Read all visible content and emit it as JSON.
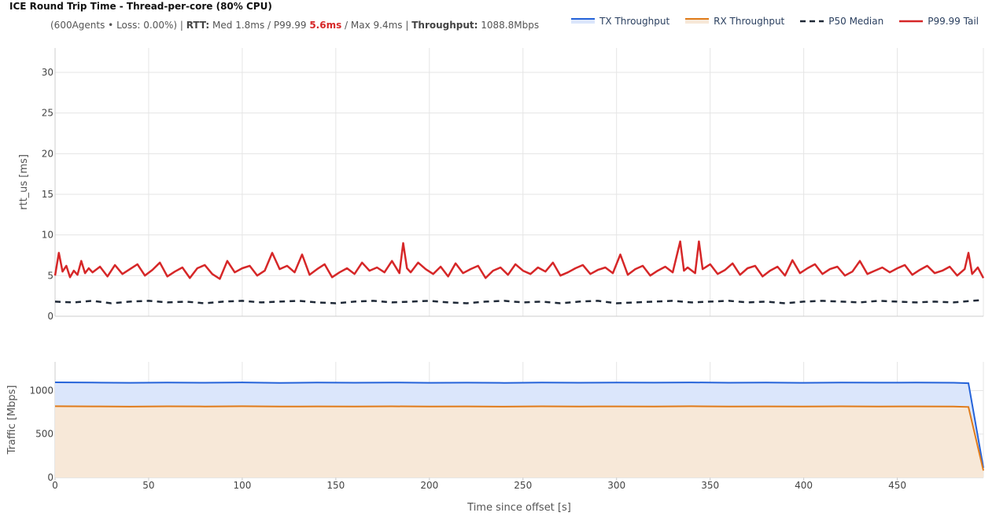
{
  "title": "ICE Round Trip Time - Thread-per-core (80% CPU)",
  "subtitle": {
    "prefix": "(600Agents • Loss: 0.00%) | ",
    "rtt_label": "RTT:",
    "rtt_med": " Med 1.8ms / P99.99 ",
    "rtt_p9999": "5.6ms",
    "rtt_max": " / Max 9.4ms | ",
    "throughput_label": "Throughput:",
    "throughput_value": " 1088.8Mbps"
  },
  "colors": {
    "tx": "#2563d9",
    "tx_fill": "#dbe6fb",
    "rx": "#e07b1a",
    "rx_fill": "#f7e8d8",
    "median": "#1f2937",
    "tail": "#d62728"
  },
  "chart_data": [
    {
      "type": "line",
      "ylabel": "rtt_us [ms]",
      "ylim": [
        0,
        33
      ],
      "yticks": [
        0,
        5,
        10,
        15,
        20,
        25,
        30
      ],
      "xlim": [
        0,
        496
      ],
      "grid": true,
      "series": [
        {
          "name": "P50 Median",
          "style": "dashed",
          "x": [
            0,
            10,
            20,
            30,
            40,
            50,
            60,
            70,
            80,
            90,
            100,
            110,
            120,
            130,
            140,
            150,
            160,
            170,
            180,
            190,
            200,
            210,
            220,
            230,
            240,
            250,
            260,
            270,
            280,
            290,
            300,
            310,
            320,
            330,
            340,
            350,
            360,
            370,
            380,
            390,
            400,
            410,
            420,
            430,
            440,
            450,
            460,
            470,
            480,
            490,
            496
          ],
          "y": [
            1.8,
            1.7,
            1.9,
            1.6,
            1.8,
            1.9,
            1.7,
            1.8,
            1.6,
            1.8,
            1.9,
            1.7,
            1.8,
            1.9,
            1.7,
            1.6,
            1.8,
            1.9,
            1.7,
            1.8,
            1.9,
            1.7,
            1.6,
            1.8,
            1.9,
            1.7,
            1.8,
            1.6,
            1.8,
            1.9,
            1.6,
            1.7,
            1.8,
            1.9,
            1.7,
            1.8,
            1.9,
            1.7,
            1.8,
            1.6,
            1.8,
            1.9,
            1.8,
            1.7,
            1.9,
            1.8,
            1.7,
            1.8,
            1.7,
            1.9,
            2.0
          ]
        },
        {
          "name": "P99.99 Tail",
          "style": "solid",
          "x": [
            0,
            2,
            4,
            6,
            8,
            10,
            12,
            14,
            16,
            18,
            20,
            24,
            28,
            32,
            36,
            40,
            44,
            48,
            52,
            56,
            60,
            64,
            68,
            72,
            76,
            80,
            84,
            88,
            92,
            96,
            100,
            104,
            108,
            112,
            116,
            120,
            124,
            128,
            132,
            136,
            140,
            144,
            148,
            152,
            156,
            160,
            164,
            168,
            172,
            176,
            180,
            184,
            186,
            188,
            190,
            194,
            198,
            202,
            206,
            210,
            214,
            218,
            222,
            226,
            230,
            234,
            238,
            242,
            246,
            250,
            254,
            258,
            262,
            266,
            270,
            274,
            278,
            282,
            286,
            290,
            294,
            298,
            302,
            306,
            310,
            314,
            318,
            322,
            326,
            330,
            334,
            336,
            338,
            342,
            344,
            346,
            350,
            354,
            358,
            362,
            366,
            370,
            374,
            378,
            382,
            386,
            390,
            394,
            398,
            402,
            406,
            410,
            414,
            418,
            422,
            426,
            430,
            434,
            438,
            442,
            446,
            450,
            454,
            458,
            462,
            466,
            470,
            474,
            478,
            482,
            486,
            488,
            490,
            493,
            496
          ],
          "y": [
            5.0,
            7.8,
            5.5,
            6.2,
            4.8,
            5.6,
            5.1,
            6.8,
            5.3,
            5.9,
            5.4,
            6.1,
            4.9,
            6.3,
            5.2,
            5.8,
            6.4,
            5.0,
            5.7,
            6.6,
            4.9,
            5.5,
            6.0,
            4.7,
            5.9,
            6.3,
            5.2,
            4.6,
            6.8,
            5.4,
            5.9,
            6.2,
            5.0,
            5.6,
            7.8,
            5.8,
            6.2,
            5.4,
            7.6,
            5.1,
            5.8,
            6.4,
            4.8,
            5.4,
            5.9,
            5.2,
            6.6,
            5.6,
            6.0,
            5.4,
            6.8,
            5.3,
            9.0,
            5.9,
            5.4,
            6.6,
            5.8,
            5.2,
            6.1,
            4.9,
            6.5,
            5.3,
            5.8,
            6.2,
            4.7,
            5.6,
            6.0,
            5.1,
            6.4,
            5.6,
            5.2,
            6.0,
            5.5,
            6.6,
            5.0,
            5.4,
            5.9,
            6.3,
            5.2,
            5.7,
            6.0,
            5.3,
            7.6,
            5.1,
            5.8,
            6.2,
            5.0,
            5.6,
            6.1,
            5.4,
            9.2,
            5.6,
            6.0,
            5.3,
            9.2,
            5.8,
            6.4,
            5.2,
            5.7,
            6.5,
            5.1,
            5.9,
            6.2,
            4.9,
            5.6,
            6.1,
            5.0,
            6.9,
            5.3,
            5.9,
            6.4,
            5.2,
            5.8,
            6.1,
            5.0,
            5.5,
            6.8,
            5.2,
            5.6,
            6.0,
            5.4,
            5.9,
            6.3,
            5.1,
            5.7,
            6.2,
            5.3,
            5.6,
            6.1,
            5.0,
            5.8,
            7.8,
            5.2,
            6.0,
            4.7
          ]
        }
      ]
    },
    {
      "type": "area",
      "xlabel": "Time since offset [s]",
      "ylabel": "Traffic [Mbps]",
      "ylim": [
        0,
        1330
      ],
      "yticks": [
        0,
        500,
        1000
      ],
      "xlim": [
        0,
        496
      ],
      "xticks": [
        0,
        50,
        100,
        150,
        200,
        250,
        300,
        350,
        400,
        450
      ],
      "grid": true,
      "series": [
        {
          "name": "TX Throughput",
          "x": [
            0,
            20,
            40,
            60,
            80,
            100,
            120,
            140,
            160,
            180,
            200,
            220,
            240,
            260,
            280,
            300,
            320,
            340,
            360,
            380,
            400,
            420,
            440,
            460,
            480,
            488,
            496
          ],
          "y": [
            1095,
            1092,
            1089,
            1093,
            1090,
            1094,
            1088,
            1092,
            1090,
            1093,
            1089,
            1091,
            1088,
            1092,
            1090,
            1093,
            1091,
            1094,
            1090,
            1092,
            1089,
            1093,
            1091,
            1092,
            1090,
            1085,
            110
          ]
        },
        {
          "name": "RX Throughput",
          "x": [
            0,
            20,
            40,
            60,
            80,
            100,
            120,
            140,
            160,
            180,
            200,
            220,
            240,
            260,
            280,
            300,
            320,
            340,
            360,
            380,
            400,
            420,
            440,
            460,
            480,
            488,
            496
          ],
          "y": [
            820,
            818,
            815,
            819,
            817,
            820,
            816,
            818,
            817,
            819,
            816,
            818,
            815,
            819,
            817,
            818,
            816,
            820,
            817,
            818,
            816,
            819,
            817,
            818,
            816,
            812,
            80
          ]
        }
      ]
    }
  ],
  "legend": [
    {
      "label": "TX Throughput",
      "key": "tx"
    },
    {
      "label": "RX Throughput",
      "key": "rx"
    },
    {
      "label": "P50 Median",
      "key": "median"
    },
    {
      "label": "P99.99 Tail",
      "key": "tail"
    }
  ]
}
